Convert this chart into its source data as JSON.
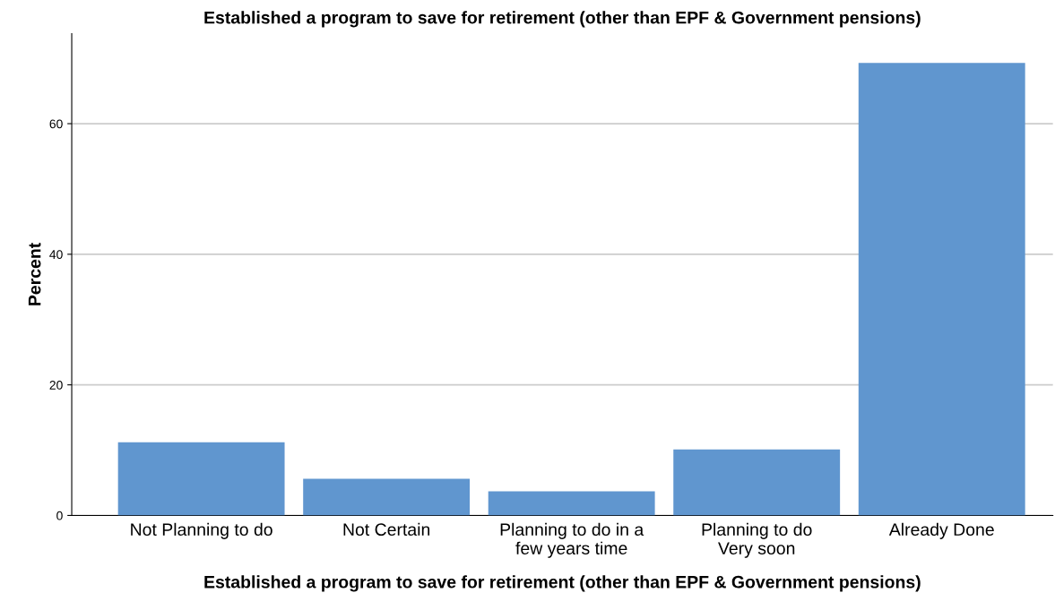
{
  "chart_data": {
    "type": "bar",
    "title": "Established a program to save for retirement (other than EPF & Government pensions)",
    "xlabel": "Established a program to save for retirement (other than EPF & Government pensions)",
    "ylabel": "Percent",
    "categories": [
      "Not Planning to do",
      "Not Certain",
      "Planning to do in a\nfew years time",
      "Planning to do\nVery soon",
      "Already Done"
    ],
    "values": [
      11.2,
      5.6,
      3.7,
      10.1,
      69.3
    ],
    "color": "#6096cf",
    "ylim": [
      0,
      73.8
    ],
    "yticks": [
      0,
      20,
      40,
      60
    ],
    "grid": "y"
  }
}
